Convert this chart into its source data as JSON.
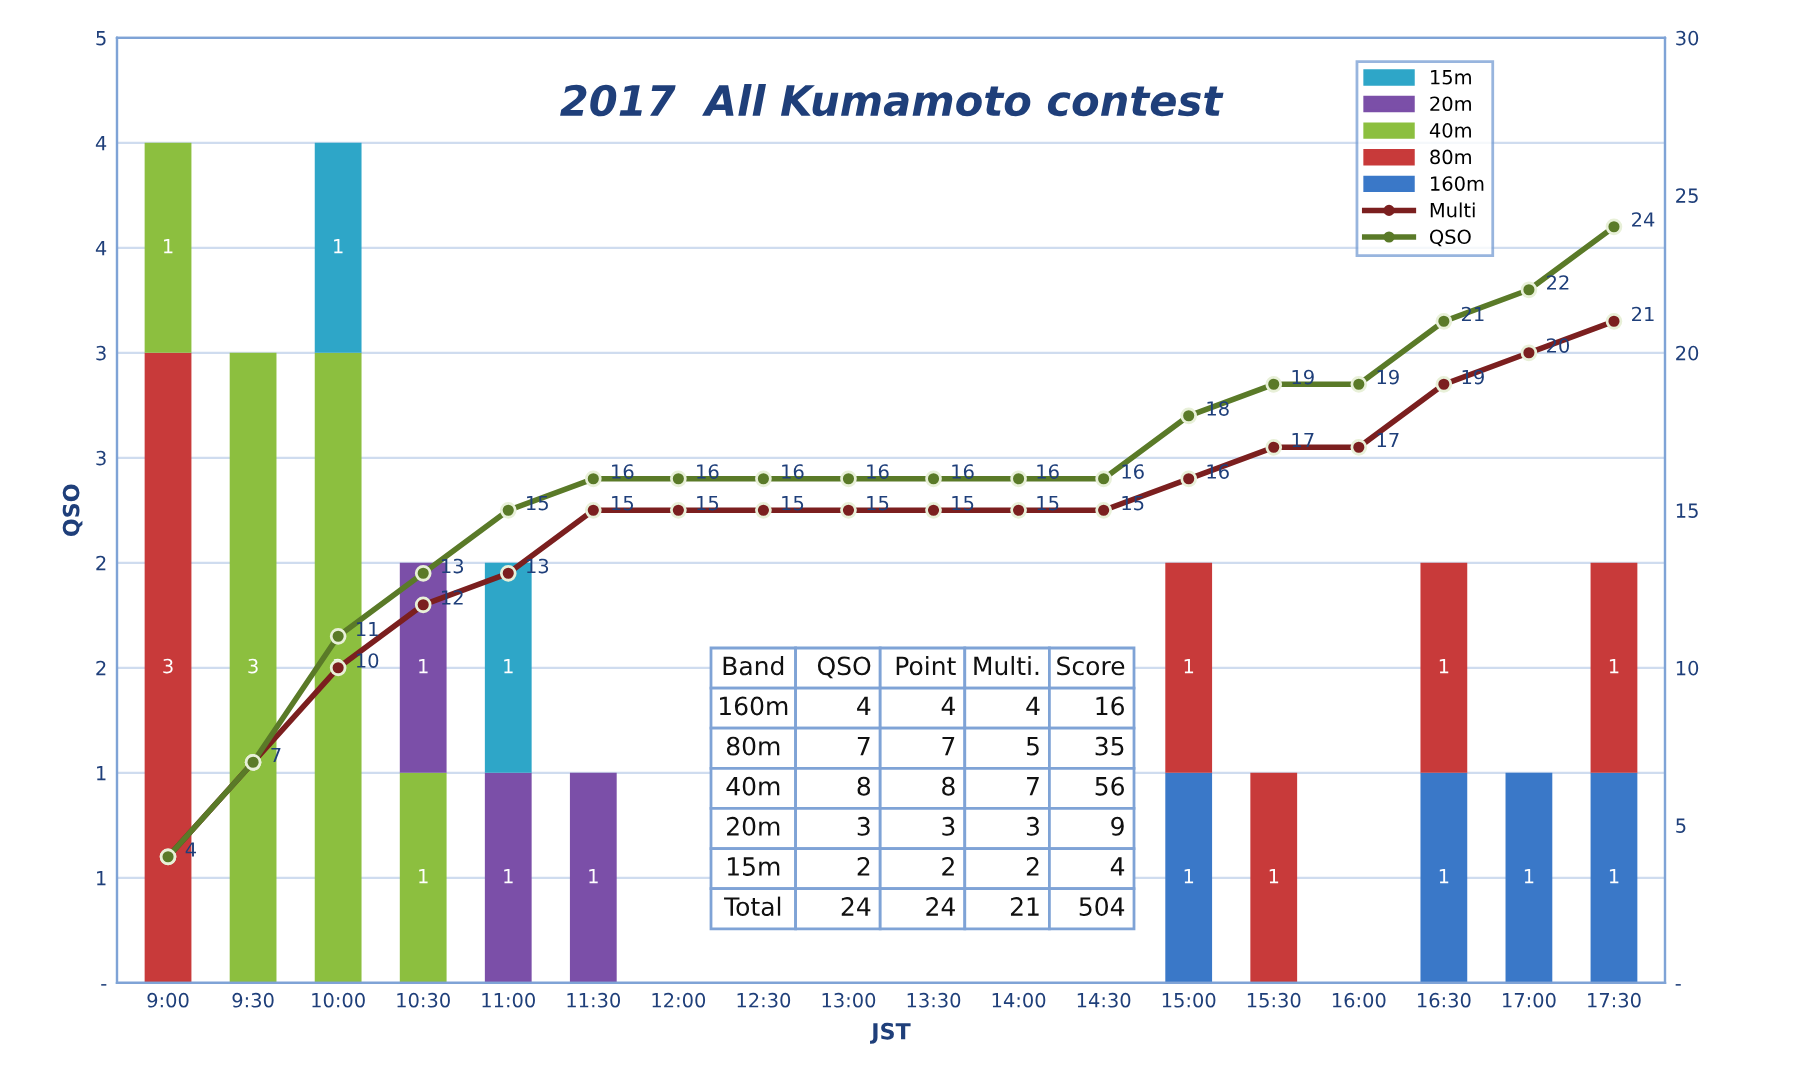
{
  "chart_data": [
    {
      "type": "bar",
      "stacked": true,
      "title": "2017  All Kumamoto contest",
      "xlabel": "JST",
      "ylabel": "QSO",
      "categories": [
        "9:00",
        "9:30",
        "10:00",
        "10:30",
        "11:00",
        "11:30",
        "12:00",
        "12:30",
        "13:00",
        "13:30",
        "14:00",
        "14:30",
        "15:00",
        "15:30",
        "16:00",
        "16:30",
        "17:00",
        "17:30"
      ],
      "series": [
        {
          "name": "160m",
          "color": "#3a78c8",
          "values": [
            null,
            null,
            null,
            null,
            null,
            null,
            null,
            null,
            null,
            null,
            null,
            null,
            1,
            null,
            null,
            1,
            1,
            1
          ]
        },
        {
          "name": "80m",
          "color": "#c83a3a",
          "values": [
            3,
            null,
            null,
            null,
            null,
            null,
            null,
            null,
            null,
            null,
            null,
            null,
            1,
            1,
            null,
            1,
            null,
            1
          ]
        },
        {
          "name": "40m",
          "color": "#8cbf3f",
          "values": [
            1,
            3,
            3,
            1,
            null,
            null,
            null,
            null,
            null,
            null,
            null,
            null,
            null,
            null,
            null,
            null,
            null,
            null
          ]
        },
        {
          "name": "20m",
          "color": "#7b4fa8",
          "values": [
            null,
            null,
            null,
            1,
            1,
            1,
            null,
            null,
            null,
            null,
            null,
            null,
            null,
            null,
            null,
            null,
            null,
            null
          ]
        },
        {
          "name": "15m",
          "color": "#2ea6c8",
          "values": [
            null,
            null,
            1,
            null,
            1,
            null,
            null,
            null,
            null,
            null,
            null,
            null,
            null,
            null,
            null,
            null,
            null,
            null
          ]
        },
        {
          "name": "Multi",
          "type": "line",
          "axis": "y2",
          "color": "#7b1f1f",
          "values": [
            4,
            7,
            10,
            12,
            13,
            15,
            15,
            15,
            15,
            15,
            15,
            15,
            16,
            17,
            17,
            19,
            20,
            21
          ],
          "value_labels": [
            null,
            null,
            "10",
            "12",
            "13",
            "15",
            "15",
            "15",
            "15",
            "15",
            "15",
            "15",
            "16",
            "17",
            "17",
            "19",
            "20",
            "21"
          ]
        },
        {
          "name": "QSO",
          "type": "line",
          "axis": "y2",
          "color": "#5a7a28",
          "values": [
            4,
            7,
            11,
            13,
            15,
            16,
            16,
            16,
            16,
            16,
            16,
            16,
            18,
            19,
            19,
            21,
            22,
            24
          ],
          "value_labels": [
            "4",
            "7",
            "11",
            "13",
            "15",
            "16",
            "16",
            "16",
            "16",
            "16",
            "16",
            "16",
            "18",
            "19",
            "19",
            "21",
            "22",
            "24"
          ]
        }
      ],
      "ylim": [
        0,
        4.5
      ],
      "yticks": [
        {
          "value": 0,
          "label": "-"
        },
        {
          "value": 0.5,
          "label": "1"
        },
        1,
        {
          "value": 1.5,
          "label": "2"
        },
        2,
        {
          "value": 2.5,
          "label": "3"
        },
        3,
        {
          "value": 3.5,
          "label": "4"
        },
        4,
        {
          "value": 4.5,
          "label": "5"
        }
      ],
      "y2lim": [
        0,
        30
      ],
      "y2ticks": [
        {
          "value": 0,
          "label": "-"
        },
        5,
        10,
        15,
        20,
        25,
        30
      ],
      "marker": "circle",
      "line_style": "solid",
      "data_labels": true,
      "grid": "y",
      "legend": "top right"
    },
    {
      "type": "other",
      "categories": [
        "Band",
        "QSO",
        "Point",
        "Multi.",
        "Score"
      ],
      "y_categories": [
        "160m",
        "80m",
        "40m",
        "20m",
        "15m",
        "Total"
      ],
      "annotations": [
        "4",
        "4",
        "4",
        "16",
        "7",
        "7",
        "5",
        "35",
        "8",
        "8",
        "7",
        "56",
        "3",
        "3",
        "3",
        "9",
        "2",
        "2",
        "2",
        "4",
        "24",
        "24",
        "21",
        "504"
      ]
    }
  ]
}
